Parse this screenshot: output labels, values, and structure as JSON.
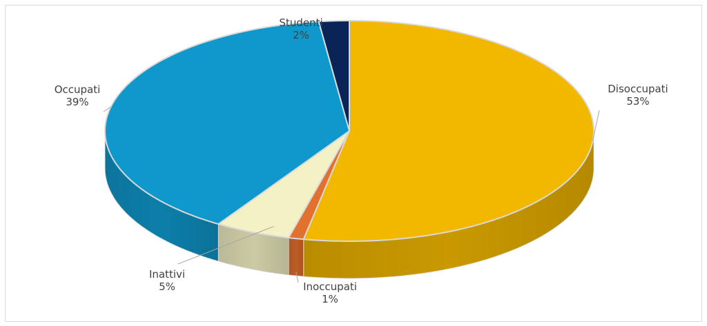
{
  "chart_data": {
    "type": "pie",
    "title": "",
    "series": [
      {
        "name": "Disoccupati",
        "label": "Disoccupati",
        "value": 53,
        "display": "53%",
        "color": "#F2B800"
      },
      {
        "name": "Inoccupati",
        "label": "Inoccupati",
        "value": 1,
        "display": "1%",
        "color": "#E2702E"
      },
      {
        "name": "Inattivi",
        "label": "Inattivi",
        "value": 5,
        "display": "5%",
        "color": "#F4F2C4"
      },
      {
        "name": "Occupati",
        "label": "Occupati",
        "value": 39,
        "display": "39%",
        "color": "#0F98CC"
      },
      {
        "name": "Studenti",
        "label": "Studenti",
        "value": 2,
        "display": "2%",
        "color": "#0A2458"
      }
    ],
    "legend": "none",
    "data_labels": "outside with leader lines",
    "style": "3d pie"
  }
}
